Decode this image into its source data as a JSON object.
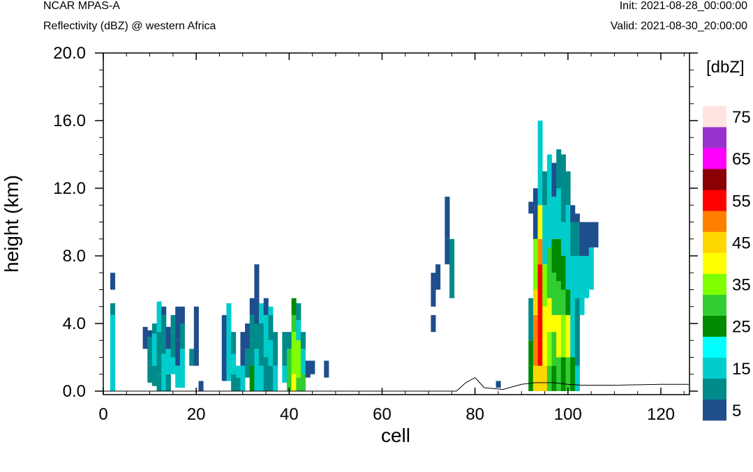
{
  "header": {
    "title": "NCAR MPAS-A",
    "subtitle": "Reflectivity (dBZ) @ western Africa",
    "init": "Init: 2021-08-28_00:00:00",
    "valid": "Valid: 2021-08-30_20:00:00"
  },
  "chart_data": {
    "type": "heatmap",
    "xlabel": "cell",
    "ylabel": "height (km)",
    "xlim": [
      0,
      126
    ],
    "ylim": [
      0,
      20
    ],
    "x_ticks": [
      "0",
      "20",
      "40",
      "60",
      "80",
      "100",
      "120"
    ],
    "y_ticks": [
      "0.0",
      "4.0",
      "8.0",
      "12.0",
      "16.0",
      "20.0"
    ],
    "colorbar": {
      "unit_label": "[dbZ]",
      "levels": [
        5,
        10,
        15,
        20,
        25,
        30,
        35,
        40,
        45,
        50,
        55,
        60,
        65,
        70,
        75,
        80
      ],
      "tick_labels": [
        "5",
        "15",
        "25",
        "35",
        "45",
        "55",
        "65",
        "75"
      ],
      "colors": [
        "#1f4e8c",
        "#008b8b",
        "#00cccc",
        "#00ffff",
        "#008b00",
        "#32cd32",
        "#7fff00",
        "#ffff00",
        "#ffd700",
        "#ff8000",
        "#ff0000",
        "#8b0000",
        "#ff00ff",
        "#9932cc",
        "#ffe4e1"
      ]
    },
    "columns_note": "each entry: [cell, [z_bottom_km, z_top_km, dBZ]]",
    "columns": [
      [
        2,
        [
          [
            0,
            1.5,
            15
          ],
          [
            1.5,
            4.5,
            15
          ],
          [
            4.5,
            5.2,
            10
          ],
          [
            6,
            7,
            5
          ]
        ]
      ],
      [
        9,
        [
          [
            2.5,
            3.8,
            5
          ]
        ]
      ],
      [
        10,
        [
          [
            0.5,
            1.5,
            10
          ],
          [
            1.5,
            3.2,
            10
          ],
          [
            3.2,
            3.6,
            5
          ]
        ]
      ],
      [
        11,
        [
          [
            0.3,
            1.5,
            10
          ],
          [
            1.5,
            3.4,
            15
          ],
          [
            3.4,
            4,
            10
          ]
        ]
      ],
      [
        12,
        [
          [
            0,
            1,
            10
          ],
          [
            1,
            3.5,
            10
          ],
          [
            3.5,
            4.4,
            15
          ],
          [
            4.4,
            5.3,
            15
          ]
        ]
      ],
      [
        13,
        [
          [
            0,
            2.2,
            15
          ],
          [
            2.2,
            4.5,
            10
          ],
          [
            4.5,
            5,
            5
          ]
        ]
      ],
      [
        14,
        [
          [
            0,
            1,
            10
          ],
          [
            1,
            2.5,
            15
          ],
          [
            2.5,
            3.8,
            5
          ]
        ]
      ],
      [
        15,
        [
          [
            1,
            2,
            15
          ],
          [
            2,
            3.5,
            10
          ],
          [
            3.5,
            4.5,
            10
          ]
        ]
      ],
      [
        16,
        [
          [
            0.2,
            1.5,
            15
          ],
          [
            1.5,
            3,
            5
          ],
          [
            3,
            5,
            5
          ]
        ]
      ],
      [
        17,
        [
          [
            0.2,
            2.5,
            15
          ],
          [
            2.5,
            4,
            10
          ],
          [
            4,
            5,
            5
          ]
        ]
      ],
      [
        19,
        [
          [
            1.5,
            2.5,
            10
          ]
        ]
      ],
      [
        20,
        [
          [
            1.5,
            5,
            5
          ]
        ]
      ],
      [
        21,
        [
          [
            0,
            0.6,
            5
          ]
        ]
      ],
      [
        26,
        [
          [
            0.6,
            4.5,
            5
          ]
        ]
      ],
      [
        27,
        [
          [
            0.6,
            1.5,
            15
          ],
          [
            1.5,
            4.5,
            15
          ],
          [
            4.5,
            5.2,
            15
          ]
        ]
      ],
      [
        28,
        [
          [
            0,
            1,
            10
          ],
          [
            1,
            2.2,
            15
          ],
          [
            2.2,
            3.5,
            10
          ]
        ]
      ],
      [
        29,
        [
          [
            0,
            0.8,
            10
          ],
          [
            0.8,
            1.5,
            15
          ]
        ]
      ],
      [
        30,
        [
          [
            0,
            1.5,
            15
          ],
          [
            1.5,
            3.5,
            5
          ]
        ]
      ],
      [
        31,
        [
          [
            0.8,
            2.5,
            10
          ],
          [
            2.5,
            4,
            5
          ]
        ]
      ],
      [
        32,
        [
          [
            0,
            1.5,
            25
          ],
          [
            1.5,
            3,
            10
          ],
          [
            3,
            4.5,
            10
          ],
          [
            4.5,
            5.5,
            5
          ]
        ]
      ],
      [
        33,
        [
          [
            0,
            2.5,
            15
          ],
          [
            2.5,
            4,
            10
          ],
          [
            4,
            5.5,
            5
          ],
          [
            5.5,
            7.5,
            5
          ]
        ]
      ],
      [
        34,
        [
          [
            0,
            1.5,
            15
          ],
          [
            1.5,
            4,
            10
          ],
          [
            4,
            5.2,
            15
          ]
        ]
      ],
      [
        35,
        [
          [
            0,
            2,
            10
          ],
          [
            2,
            4.5,
            15
          ],
          [
            4.5,
            5.5,
            5
          ]
        ]
      ],
      [
        36,
        [
          [
            0,
            1.5,
            10
          ],
          [
            1.5,
            3,
            15
          ],
          [
            3,
            4.5,
            10
          ],
          [
            4.5,
            5,
            15
          ]
        ]
      ],
      [
        37,
        [
          [
            0,
            1.5,
            15
          ],
          [
            1.5,
            3.5,
            10
          ]
        ]
      ],
      [
        39,
        [
          [
            0.5,
            1.5,
            15
          ],
          [
            1.5,
            3.5,
            10
          ]
        ]
      ],
      [
        40,
        [
          [
            0,
            1,
            30
          ],
          [
            1,
            2.5,
            30
          ],
          [
            2.5,
            3.5,
            10
          ]
        ]
      ],
      [
        41,
        [
          [
            0,
            1,
            40
          ],
          [
            1,
            3.5,
            35
          ],
          [
            3.5,
            4.5,
            30
          ],
          [
            4.5,
            5.5,
            25
          ]
        ]
      ],
      [
        42,
        [
          [
            0,
            0.8,
            30
          ],
          [
            0.8,
            3,
            35
          ],
          [
            3,
            4.2,
            15
          ],
          [
            4.2,
            5.2,
            10
          ]
        ]
      ],
      [
        43,
        [
          [
            0,
            1,
            30
          ],
          [
            1,
            2.5,
            15
          ],
          [
            2.5,
            3.5,
            10
          ]
        ]
      ],
      [
        44,
        [
          [
            0.8,
            1.8,
            5
          ]
        ]
      ],
      [
        45,
        [
          [
            1,
            1.8,
            5
          ]
        ]
      ],
      [
        48,
        [
          [
            0.8,
            1.8,
            5
          ]
        ]
      ],
      [
        71,
        [
          [
            3.5,
            4.5,
            5
          ],
          [
            5,
            7,
            5
          ]
        ]
      ],
      [
        72,
        [
          [
            6,
            7.5,
            5
          ]
        ]
      ],
      [
        74,
        [
          [
            9,
            11.5,
            5
          ],
          [
            7.5,
            9,
            5
          ]
        ]
      ],
      [
        75,
        [
          [
            5.5,
            9,
            10
          ]
        ]
      ],
      [
        85,
        [
          [
            0.2,
            0.6,
            5
          ]
        ]
      ],
      [
        92,
        [
          [
            0,
            1.5,
            25
          ],
          [
            1.5,
            3,
            25
          ],
          [
            3,
            5.5,
            10
          ],
          [
            10.5,
            11.2,
            5
          ]
        ]
      ],
      [
        93,
        [
          [
            0,
            1.5,
            45
          ],
          [
            1.5,
            4.5,
            50
          ],
          [
            4.5,
            6,
            45
          ],
          [
            6,
            9,
            35
          ],
          [
            9,
            12,
            5
          ]
        ]
      ],
      [
        94,
        [
          [
            0,
            1.5,
            45
          ],
          [
            1.5,
            3,
            55
          ],
          [
            3,
            7.5,
            55
          ],
          [
            7.5,
            9,
            50
          ],
          [
            9,
            11,
            40
          ],
          [
            11,
            16,
            15
          ]
        ]
      ],
      [
        95,
        [
          [
            0,
            1.5,
            45
          ],
          [
            1.5,
            3,
            40
          ],
          [
            3,
            5,
            40
          ],
          [
            5,
            7.5,
            35
          ],
          [
            7.5,
            11,
            15
          ],
          [
            11,
            13,
            10
          ]
        ]
      ],
      [
        96,
        [
          [
            0,
            1.5,
            30
          ],
          [
            1.5,
            3.5,
            35
          ],
          [
            3.5,
            5.5,
            40
          ],
          [
            5.5,
            8.5,
            30
          ],
          [
            8.5,
            11,
            15
          ],
          [
            11,
            14,
            15
          ]
        ]
      ],
      [
        97,
        [
          [
            0,
            1.5,
            25
          ],
          [
            1.5,
            3.5,
            30
          ],
          [
            3.5,
            4.5,
            40
          ],
          [
            4.5,
            7,
            30
          ],
          [
            7,
            9,
            25
          ],
          [
            9,
            11.5,
            15
          ],
          [
            11.5,
            13.5,
            5
          ]
        ]
      ],
      [
        98,
        [
          [
            0,
            2,
            30
          ],
          [
            2,
            4.5,
            40
          ],
          [
            4.5,
            6.5,
            30
          ],
          [
            6.5,
            9,
            25
          ],
          [
            9,
            12,
            15
          ],
          [
            12,
            14.3,
            10
          ]
        ]
      ],
      [
        99,
        [
          [
            0,
            2,
            25
          ],
          [
            2,
            4.5,
            35
          ],
          [
            4.5,
            6,
            30
          ],
          [
            6,
            8,
            25
          ],
          [
            8,
            10,
            15
          ],
          [
            10,
            14,
            10
          ]
        ]
      ],
      [
        100,
        [
          [
            0,
            2,
            30
          ],
          [
            2,
            4.5,
            40
          ],
          [
            4.5,
            6,
            25
          ],
          [
            6,
            8.5,
            15
          ],
          [
            8.5,
            11,
            15
          ],
          [
            11,
            13,
            10
          ]
        ]
      ],
      [
        101,
        [
          [
            0,
            2,
            25
          ],
          [
            2,
            4.5,
            15
          ],
          [
            4.5,
            8,
            15
          ],
          [
            8,
            10,
            10
          ],
          [
            10,
            11,
            5
          ]
        ]
      ],
      [
        102,
        [
          [
            0,
            1.5,
            15
          ],
          [
            1.5,
            3.5,
            10
          ],
          [
            3.5,
            5.5,
            10
          ],
          [
            5.5,
            8,
            15
          ],
          [
            8,
            10,
            10
          ],
          [
            10,
            10.5,
            5
          ]
        ]
      ],
      [
        103,
        [
          [
            4.5,
            6,
            15
          ],
          [
            6,
            8,
            15
          ],
          [
            8,
            10,
            5
          ]
        ]
      ],
      [
        104,
        [
          [
            5.5,
            8,
            15
          ],
          [
            8,
            10,
            5
          ]
        ]
      ],
      [
        105,
        [
          [
            6,
            8.5,
            15
          ],
          [
            8.5,
            10,
            5
          ]
        ]
      ],
      [
        106,
        [
          [
            8.5,
            10,
            5
          ]
        ]
      ]
    ],
    "terrain_km": [
      [
        0,
        0
      ],
      [
        76,
        0
      ],
      [
        78,
        0.5
      ],
      [
        80,
        0.8
      ],
      [
        82,
        0.2
      ],
      [
        86,
        0.1
      ],
      [
        90,
        0.4
      ],
      [
        93,
        0.5
      ],
      [
        97,
        0.5
      ],
      [
        100,
        0.4
      ],
      [
        103,
        0.35
      ],
      [
        110,
        0.35
      ],
      [
        120,
        0.4
      ],
      [
        126,
        0.4
      ]
    ]
  }
}
